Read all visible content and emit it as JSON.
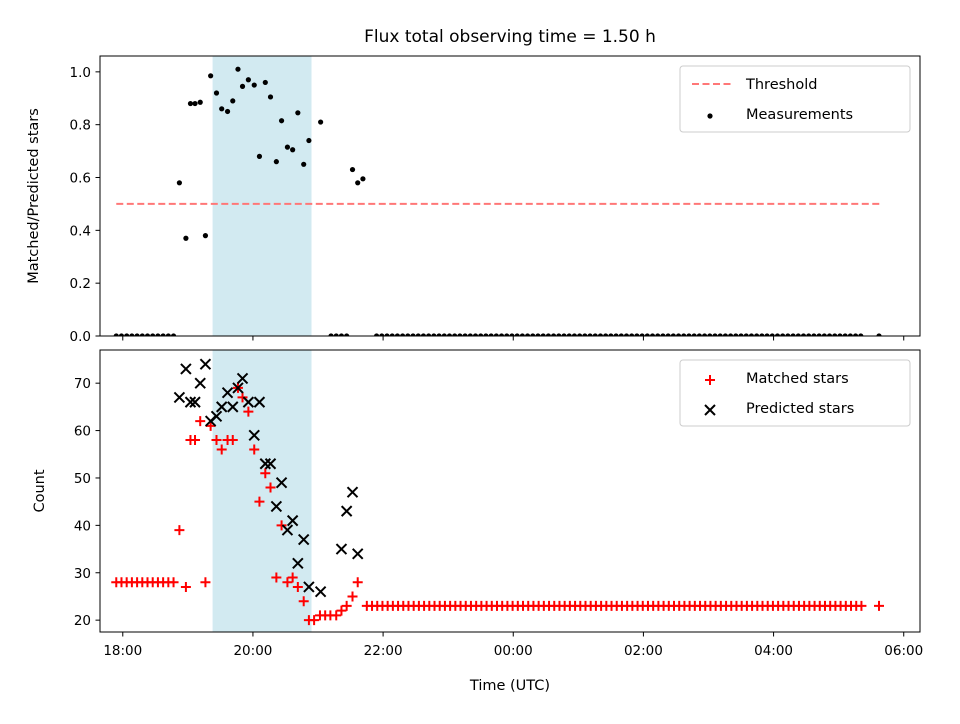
{
  "chart_data": {
    "title": "Flux total observing time = 1.50 h",
    "xlabel": "Time (UTC)",
    "x_unit": "hours since 18:00 UTC",
    "xlim": [
      -0.35,
      12.25
    ],
    "x_ticks": [
      {
        "value": 0,
        "label": "18:00"
      },
      {
        "value": 2,
        "label": "20:00"
      },
      {
        "value": 4,
        "label": "22:00"
      },
      {
        "value": 6,
        "label": "00:00"
      },
      {
        "value": 8,
        "label": "02:00"
      },
      {
        "value": 10,
        "label": "04:00"
      },
      {
        "value": 12,
        "label": "06:00"
      }
    ],
    "shaded_span": {
      "start": 1.38,
      "end": 2.9,
      "color": "#add8e6"
    },
    "panels": [
      {
        "type": "scatter",
        "ylabel": "Matched/Predicted stars",
        "ylim": [
          0,
          1.06
        ],
        "y_ticks": [
          {
            "value": 0,
            "label": "0.0"
          },
          {
            "value": 0.2,
            "label": "0.2"
          },
          {
            "value": 0.4,
            "label": "0.4"
          },
          {
            "value": 0.6,
            "label": "0.6"
          },
          {
            "value": 0.8,
            "label": "0.8"
          },
          {
            "value": 1.0,
            "label": "1.0"
          }
        ],
        "threshold": {
          "name": "Threshold",
          "value": 0.5,
          "x_range": [
            -0.1,
            11.65
          ],
          "color": "#ff7777"
        },
        "legend": [
          "Threshold",
          "Measurements"
        ],
        "legend_position": "top-right",
        "series": [
          {
            "name": "Measurements",
            "color": "#000000",
            "marker": "dot",
            "x": [
              0.87,
              0.97,
              1.04,
              1.11,
              1.19,
              1.27,
              1.35,
              1.44,
              1.52,
              1.61,
              1.69,
              1.77,
              1.84,
              1.93,
              2.02,
              2.1,
              2.19,
              2.27,
              2.36,
              2.44,
              2.53,
              2.61,
              2.69,
              2.78,
              2.86,
              3.04,
              3.53,
              3.61,
              3.69
            ],
            "y": [
              0.58,
              0.37,
              0.88,
              0.88,
              0.885,
              0.38,
              0.985,
              0.92,
              0.86,
              0.85,
              0.89,
              1.01,
              0.945,
              0.97,
              0.95,
              0.68,
              0.96,
              0.905,
              0.66,
              0.815,
              0.715,
              0.705,
              0.845,
              0.65,
              0.74,
              0.81,
              0.63,
              0.58,
              0.595
            ]
          },
          {
            "name": "Measurements (zero)",
            "color": "#000000",
            "marker": "dot",
            "zero_runs": [
              {
                "from": -0.1,
                "to": 0.82,
                "step": 0.08
              },
              {
                "from": 3.2,
                "to": 3.45,
                "step": 0.08
              },
              {
                "from": 3.9,
                "to": 11.35,
                "step": 0.08
              }
            ],
            "zero_points": [
              11.62
            ]
          }
        ]
      },
      {
        "type": "scatter",
        "ylabel": "Count",
        "ylim": [
          17.5,
          77
        ],
        "y_ticks": [
          {
            "value": 20,
            "label": "20"
          },
          {
            "value": 30,
            "label": "30"
          },
          {
            "value": 40,
            "label": "40"
          },
          {
            "value": 50,
            "label": "50"
          },
          {
            "value": 60,
            "label": "60"
          },
          {
            "value": 70,
            "label": "70"
          }
        ],
        "legend": [
          "Matched stars",
          "Predicted stars"
        ],
        "legend_position": "top-right",
        "series": [
          {
            "name": "Matched stars",
            "color": "#ff0000",
            "marker": "plus",
            "x": [
              0.87,
              0.97,
              1.04,
              1.11,
              1.19,
              1.27,
              1.35,
              1.44,
              1.52,
              1.61,
              1.69,
              1.77,
              1.84,
              1.93,
              2.02,
              2.1,
              2.19,
              2.27,
              2.36,
              2.44,
              2.53,
              2.61,
              2.69,
              2.78,
              2.86,
              2.94,
              3.03,
              3.11,
              3.19,
              3.28,
              3.36,
              3.44,
              3.53,
              3.61
            ],
            "y": [
              39,
              27,
              58,
              58,
              62,
              28,
              61,
              58,
              56,
              58,
              58,
              69,
              67,
              64,
              56,
              45,
              51,
              48,
              29,
              40,
              28,
              29,
              27,
              24,
              20,
              20,
              21,
              21,
              21,
              21,
              22,
              23,
              25,
              28
            ],
            "runs": [
              {
                "from": -0.1,
                "to": 0.82,
                "step": 0.08,
                "y": 28
              },
              {
                "from": 3.75,
                "to": 11.35,
                "step": 0.08,
                "y": 23
              }
            ],
            "extra": [
              {
                "x": 11.62,
                "y": 23
              }
            ]
          },
          {
            "name": "Predicted stars",
            "color": "#000000",
            "marker": "x",
            "x": [
              0.87,
              0.97,
              1.04,
              1.11,
              1.19,
              1.27,
              1.35,
              1.44,
              1.52,
              1.61,
              1.69,
              1.77,
              1.84,
              1.93,
              2.02,
              2.1,
              2.19,
              2.27,
              2.36,
              2.44,
              2.53,
              2.61,
              2.69,
              2.78,
              2.86,
              3.04,
              3.36,
              3.44,
              3.53,
              3.61
            ],
            "y": [
              67,
              73,
              66,
              66,
              70,
              74,
              62,
              63,
              65,
              68,
              65,
              69,
              71,
              66,
              59,
              66,
              53,
              53,
              44,
              49,
              39,
              41,
              32,
              37,
              27,
              26,
              35,
              43,
              47,
              34
            ]
          }
        ]
      }
    ]
  }
}
